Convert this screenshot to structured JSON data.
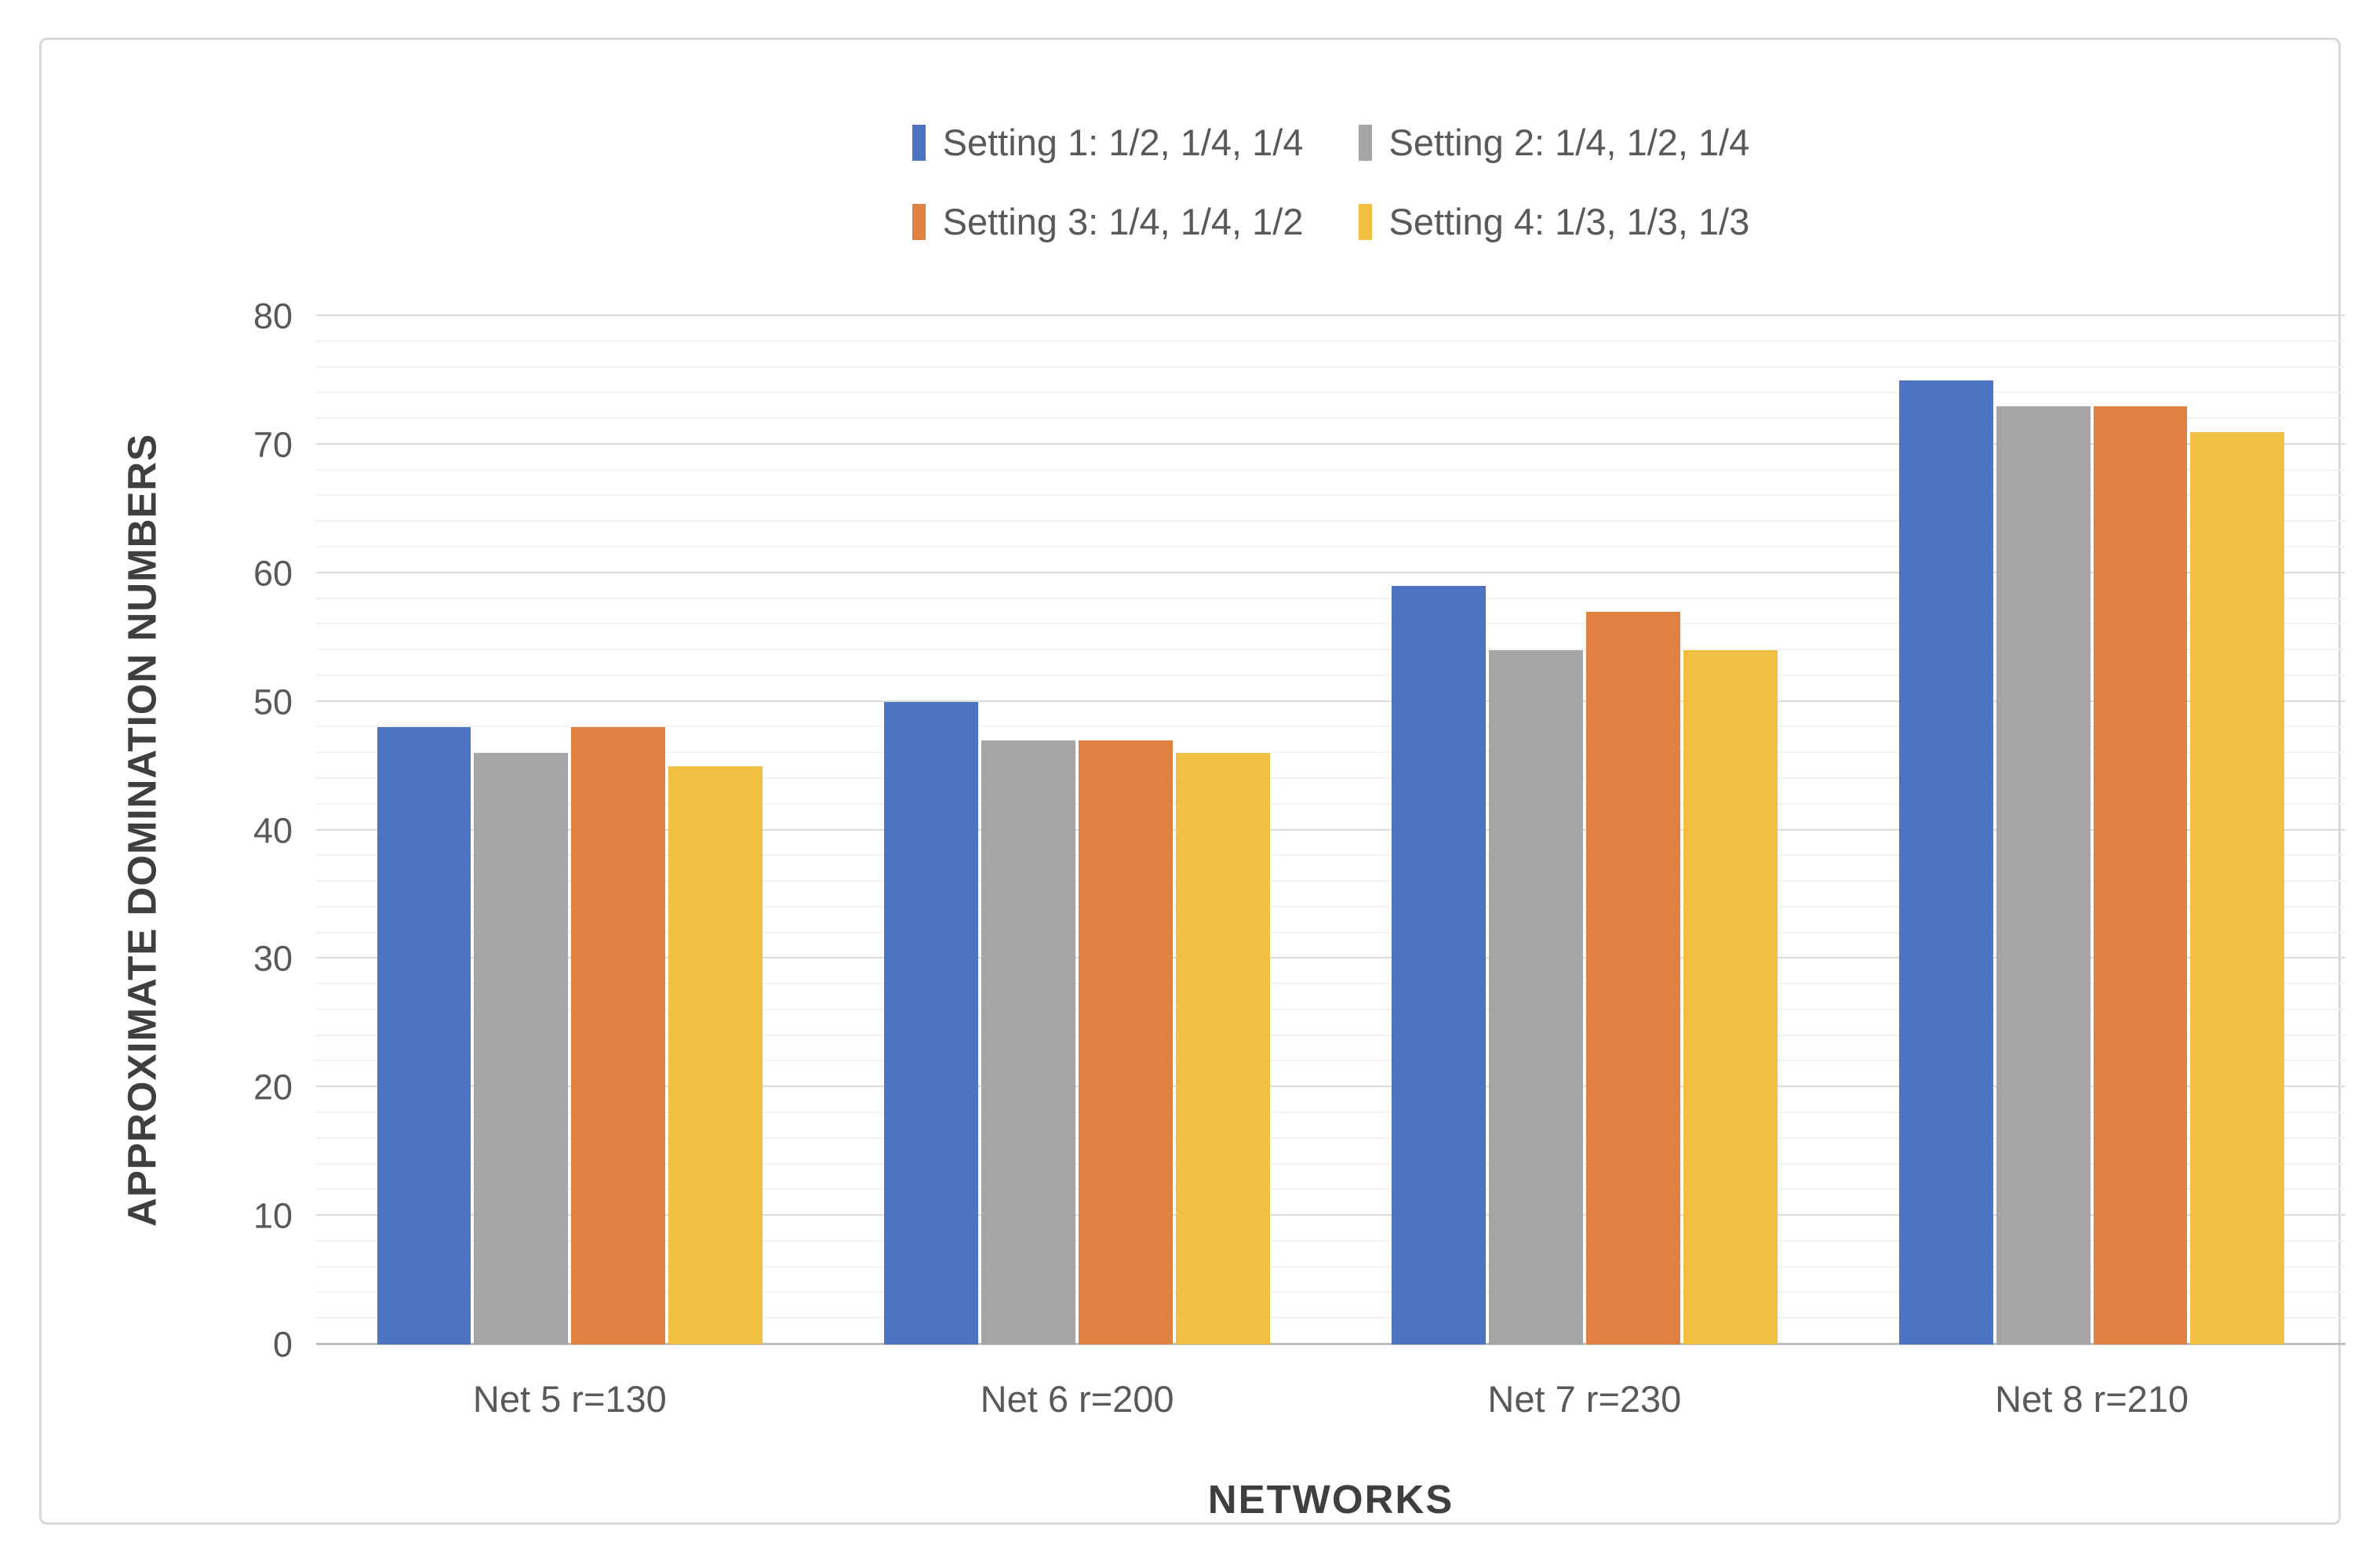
{
  "chart_data": {
    "type": "bar",
    "title": "",
    "xlabel": "NETWORKS",
    "ylabel": "APPROXIMATE DOMINATION NUMBERS",
    "categories": [
      "Net 5 r=130",
      "Net 6 r=200",
      "Net 7 r=230",
      "Net 8 r=210"
    ],
    "series": [
      {
        "name": "Setting 1: 1/2, 1/4, 1/4",
        "color": "#4c74c0",
        "values": [
          48,
          50,
          59,
          75
        ]
      },
      {
        "name": "Setting 2: 1/4, 1/2, 1/4",
        "color": "#a5a5a5",
        "values": [
          46,
          47,
          54,
          73
        ]
      },
      {
        "name": "Setting 3: 1/4, 1/4, 1/2",
        "color": "#e08142",
        "values": [
          48,
          47,
          57,
          73
        ]
      },
      {
        "name": "Setting 4: 1/3, 1/3, 1/3",
        "color": "#f2c040",
        "values": [
          45,
          46,
          54,
          71
        ]
      }
    ],
    "legend_rows": [
      [
        0,
        1
      ],
      [
        2,
        3
      ]
    ],
    "legend_position": "top",
    "ylim": [
      0,
      80
    ],
    "y_ticks": [
      0,
      10,
      20,
      30,
      40,
      50,
      60,
      70,
      80
    ],
    "y_minor_step": 2,
    "grid": true
  },
  "colors": {
    "tick_text": "#595959",
    "axis_title_text": "#3f3f3f",
    "frame_border": "#d9d9d9"
  }
}
